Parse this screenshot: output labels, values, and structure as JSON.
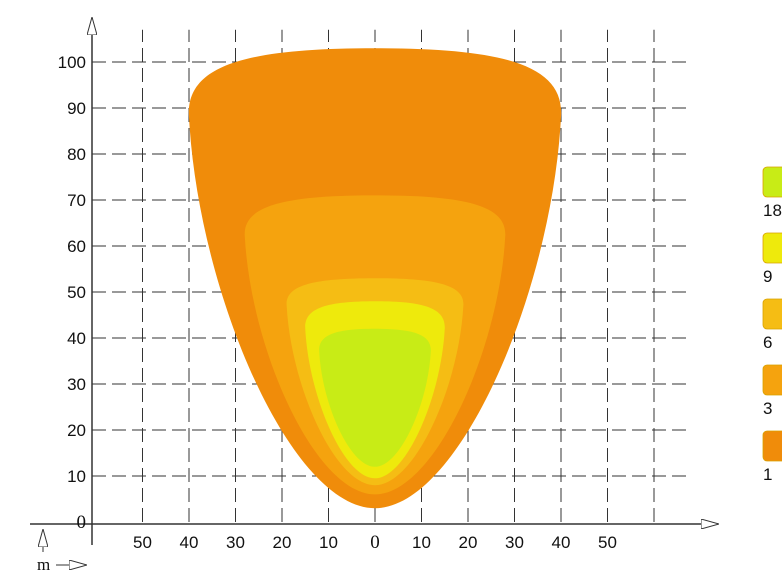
{
  "chart_data": {
    "type": "heatmap",
    "title": "",
    "xlabel": "",
    "ylabel": "",
    "unit_label": "m",
    "xlim": [
      -60,
      70
    ],
    "ylim": [
      0,
      105
    ],
    "x_ticks": [
      {
        "value": -50,
        "label": "50"
      },
      {
        "value": -40,
        "label": "40"
      },
      {
        "value": -30,
        "label": "30"
      },
      {
        "value": -20,
        "label": "20"
      },
      {
        "value": -10,
        "label": "10"
      },
      {
        "value": 0,
        "label": "0"
      },
      {
        "value": 10,
        "label": "10"
      },
      {
        "value": 20,
        "label": "20"
      },
      {
        "value": 30,
        "label": "30"
      },
      {
        "value": 40,
        "label": "40"
      },
      {
        "value": 50,
        "label": "50"
      }
    ],
    "y_ticks": [
      {
        "value": 0,
        "label": "0"
      },
      {
        "value": 10,
        "label": "10"
      },
      {
        "value": 20,
        "label": "20"
      },
      {
        "value": 30,
        "label": "30"
      },
      {
        "value": 40,
        "label": "40"
      },
      {
        "value": 50,
        "label": "50"
      },
      {
        "value": 60,
        "label": "60"
      },
      {
        "value": 70,
        "label": "70"
      },
      {
        "value": 80,
        "label": "80"
      },
      {
        "value": 90,
        "label": "90"
      },
      {
        "value": 100,
        "label": "100"
      }
    ],
    "grid": true,
    "legend_placement": "right",
    "series": [
      {
        "name": "1",
        "color": "#f08c0a",
        "y_top": 103,
        "y_bottom": 3,
        "half_width_top": 40,
        "y_shoulder": 88
      },
      {
        "name": "3",
        "color": "#f5a30e",
        "y_top": 71,
        "y_bottom": 6,
        "half_width_top": 28,
        "y_shoulder": 62
      },
      {
        "name": "6",
        "color": "#f5bd14",
        "y_top": 53,
        "y_bottom": 8,
        "half_width_top": 19,
        "y_shoulder": 47
      },
      {
        "name": "9",
        "color": "#eeea0c",
        "y_top": 48,
        "y_bottom": 9.5,
        "half_width_top": 15,
        "y_shoulder": 42
      },
      {
        "name": "18",
        "color": "#c8ec16",
        "y_top": 42,
        "y_bottom": 12,
        "half_width_top": 12,
        "y_shoulder": 37
      }
    ],
    "legend": [
      {
        "label": "18",
        "color": "#c8ec16"
      },
      {
        "label": "9",
        "color": "#eeea0c"
      },
      {
        "label": "6",
        "color": "#f5bd14"
      },
      {
        "label": "3",
        "color": "#f5a30e"
      },
      {
        "label": "1",
        "color": "#f08c0a"
      }
    ]
  }
}
